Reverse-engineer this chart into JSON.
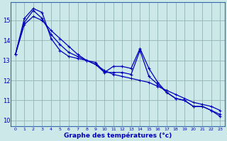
{
  "xlabel": "Graphe des températures (°c)",
  "background_color": "#cce8e8",
  "grid_color": "#99bbbb",
  "line_color": "#0000bb",
  "xlim": [
    -0.5,
    23.5
  ],
  "ylim": [
    9.7,
    15.9
  ],
  "yticks": [
    10,
    11,
    12,
    13,
    14,
    15
  ],
  "xticks": [
    0,
    1,
    2,
    3,
    4,
    5,
    6,
    7,
    8,
    9,
    10,
    11,
    12,
    13,
    14,
    15,
    16,
    17,
    18,
    19,
    20,
    21,
    22,
    23
  ],
  "series_smooth": [
    13.3,
    14.8,
    15.2,
    15.0,
    14.5,
    14.1,
    13.7,
    13.3,
    13.0,
    12.8,
    12.5,
    12.3,
    12.2,
    12.1,
    12.0,
    11.9,
    11.7,
    11.5,
    11.3,
    11.1,
    10.9,
    10.8,
    10.7,
    10.5
  ],
  "series_data": [
    13.3,
    15.1,
    15.6,
    15.4,
    14.1,
    13.5,
    13.2,
    13.1,
    13.0,
    12.9,
    12.4,
    12.7,
    12.7,
    12.6,
    13.6,
    12.6,
    11.9,
    11.4,
    11.1,
    11.0,
    10.7,
    10.7,
    10.5,
    10.3
  ],
  "series_trend": [
    13.3,
    14.9,
    15.5,
    15.1,
    14.3,
    13.8,
    13.4,
    13.2,
    13.0,
    12.8,
    12.4,
    12.4,
    12.4,
    12.3,
    13.5,
    12.2,
    11.8,
    11.4,
    11.1,
    11.0,
    10.7,
    10.7,
    10.5,
    10.2
  ]
}
